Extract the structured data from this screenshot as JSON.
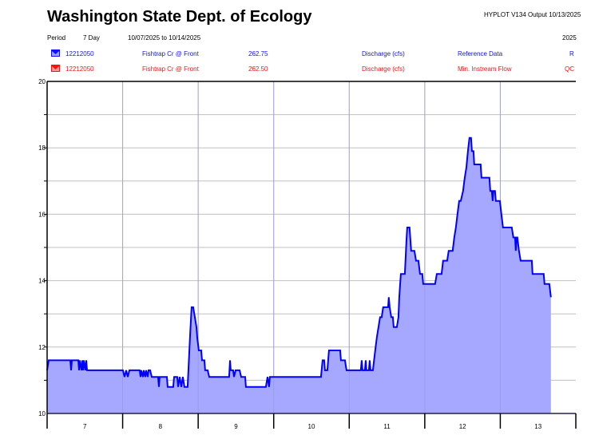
{
  "header": {
    "title": "Washington State Dept. of Ecology",
    "program": "HYPLOT V134  Output 10/13/2025",
    "period_label": "Period",
    "period_value": "7 Day",
    "date_range": "10/07/2025  to  10/14/2025",
    "year": "2025"
  },
  "series_legend": [
    {
      "icon": "hydrograph-icon",
      "color": "#1010ff",
      "station": "12212050",
      "name": "Fishtrap Cr @ Front",
      "value": "262.75",
      "parameter": "Discharge (cfs)",
      "type": "Reference Data",
      "flag": "R"
    },
    {
      "icon": "hydrograph-icon",
      "color": "#ff1010",
      "station": "12212050",
      "name": "Fishtrap Cr @ Front",
      "value": "262.50",
      "parameter": "Discharge (cfs)",
      "type": "Min. Instream Flow",
      "flag": "QC"
    }
  ],
  "chart_data": {
    "type": "area",
    "title": "Washington State Dept. of Ecology",
    "xlabel": "",
    "ylabel": "",
    "xlim": [
      7,
      14
    ],
    "ylim": [
      10,
      20
    ],
    "x_tick_labels": [
      "7",
      "8",
      "9",
      "10",
      "11",
      "12",
      "13"
    ],
    "y_tick_labels": [
      "10",
      "12",
      "14",
      "16",
      "18",
      "20"
    ],
    "grid": true,
    "colors": {
      "line": "#0000ff",
      "fill": "#a6a8ff",
      "grid": "#c0c0c0"
    },
    "series": [
      {
        "name": "12212050 Fishtrap Cr @ Front",
        "x": [
          7.0,
          7.021,
          7.307,
          7.317,
          7.328,
          7.412,
          7.423,
          7.433,
          7.455,
          7.465,
          7.476,
          7.486,
          7.507,
          7.518,
          7.529,
          8.004,
          8.025,
          8.047,
          8.068,
          8.089,
          8.226,
          8.237,
          8.247,
          8.269,
          8.279,
          8.3,
          8.311,
          8.332,
          8.343,
          8.364,
          8.385,
          8.469,
          8.48,
          8.49,
          8.586,
          8.596,
          8.67,
          8.681,
          8.723,
          8.734,
          8.755,
          8.776,
          8.797,
          8.818,
          8.86,
          8.892,
          8.913,
          8.934,
          8.956,
          8.977,
          8.987,
          9.008,
          9.04,
          9.051,
          9.082,
          9.093,
          9.125,
          9.146,
          9.41,
          9.421,
          9.431,
          9.463,
          9.474,
          9.495,
          9.548,
          9.569,
          9.622,
          9.632,
          9.896,
          9.918,
          9.939,
          9.949,
          10.626,
          10.647,
          10.668,
          10.679,
          10.71,
          10.732,
          10.88,
          10.89,
          10.943,
          10.964,
          11.154,
          11.165,
          11.176,
          11.207,
          11.218,
          11.228,
          11.26,
          11.271,
          11.281,
          11.313,
          11.344,
          11.366,
          11.387,
          11.408,
          11.429,
          11.45,
          11.514,
          11.524,
          11.535,
          11.556,
          11.577,
          11.588,
          11.63,
          11.651,
          11.662,
          11.683,
          11.736,
          11.757,
          11.768,
          11.799,
          11.82,
          11.863,
          11.884,
          11.916,
          11.937,
          11.968,
          11.979,
          12.137,
          12.159,
          12.222,
          12.243,
          12.296,
          12.317,
          12.37,
          12.391,
          12.412,
          12.433,
          12.455,
          12.476,
          12.507,
          12.529,
          12.55,
          12.571,
          12.592,
          12.613,
          12.624,
          12.645,
          12.655,
          12.74,
          12.751,
          12.856,
          12.867,
          12.888,
          12.899,
          12.909,
          12.93,
          12.941,
          12.994,
          13.015,
          13.036,
          13.152,
          13.173,
          13.195,
          13.205,
          13.216,
          13.226,
          13.247,
          13.269,
          13.417,
          13.427,
          13.575,
          13.586,
          13.649,
          13.67
        ],
        "y": [
          11.3,
          11.6,
          11.6,
          11.3,
          11.6,
          11.6,
          11.3,
          11.6,
          11.3,
          11.6,
          11.3,
          11.6,
          11.3,
          11.6,
          11.3,
          11.3,
          11.1,
          11.3,
          11.1,
          11.3,
          11.3,
          11.1,
          11.3,
          11.1,
          11.3,
          11.1,
          11.3,
          11.1,
          11.3,
          11.3,
          11.1,
          11.1,
          10.8,
          11.1,
          11.1,
          10.8,
          10.8,
          11.1,
          11.1,
          10.8,
          11.1,
          10.8,
          11.1,
          10.8,
          10.8,
          12.3,
          13.2,
          13.2,
          12.9,
          12.6,
          12.3,
          11.9,
          11.9,
          11.6,
          11.6,
          11.3,
          11.3,
          11.1,
          11.1,
          11.6,
          11.3,
          11.3,
          11.1,
          11.3,
          11.3,
          11.1,
          11.1,
          10.8,
          10.8,
          11.1,
          10.8,
          11.1,
          11.1,
          11.6,
          11.6,
          11.3,
          11.3,
          11.9,
          11.9,
          11.6,
          11.6,
          11.3,
          11.3,
          11.6,
          11.3,
          11.3,
          11.6,
          11.3,
          11.3,
          11.6,
          11.3,
          11.3,
          11.9,
          12.3,
          12.6,
          12.9,
          12.9,
          13.2,
          13.2,
          13.5,
          13.2,
          12.9,
          12.9,
          12.6,
          12.6,
          12.9,
          13.5,
          14.2,
          14.2,
          15.2,
          15.6,
          15.6,
          14.9,
          14.9,
          14.6,
          14.6,
          14.2,
          14.2,
          13.9,
          13.9,
          14.2,
          14.2,
          14.6,
          14.6,
          14.9,
          14.9,
          15.3,
          15.6,
          16.0,
          16.4,
          16.4,
          16.7,
          17.1,
          17.4,
          17.9,
          18.3,
          18.3,
          17.9,
          17.9,
          17.5,
          17.5,
          17.1,
          17.1,
          16.7,
          16.7,
          16.4,
          16.7,
          16.7,
          16.4,
          16.4,
          16.0,
          15.6,
          15.6,
          15.3,
          15.3,
          14.9,
          15.3,
          15.3,
          14.9,
          14.6,
          14.6,
          14.2,
          14.2,
          13.9,
          13.9,
          13.5
        ]
      }
    ]
  }
}
